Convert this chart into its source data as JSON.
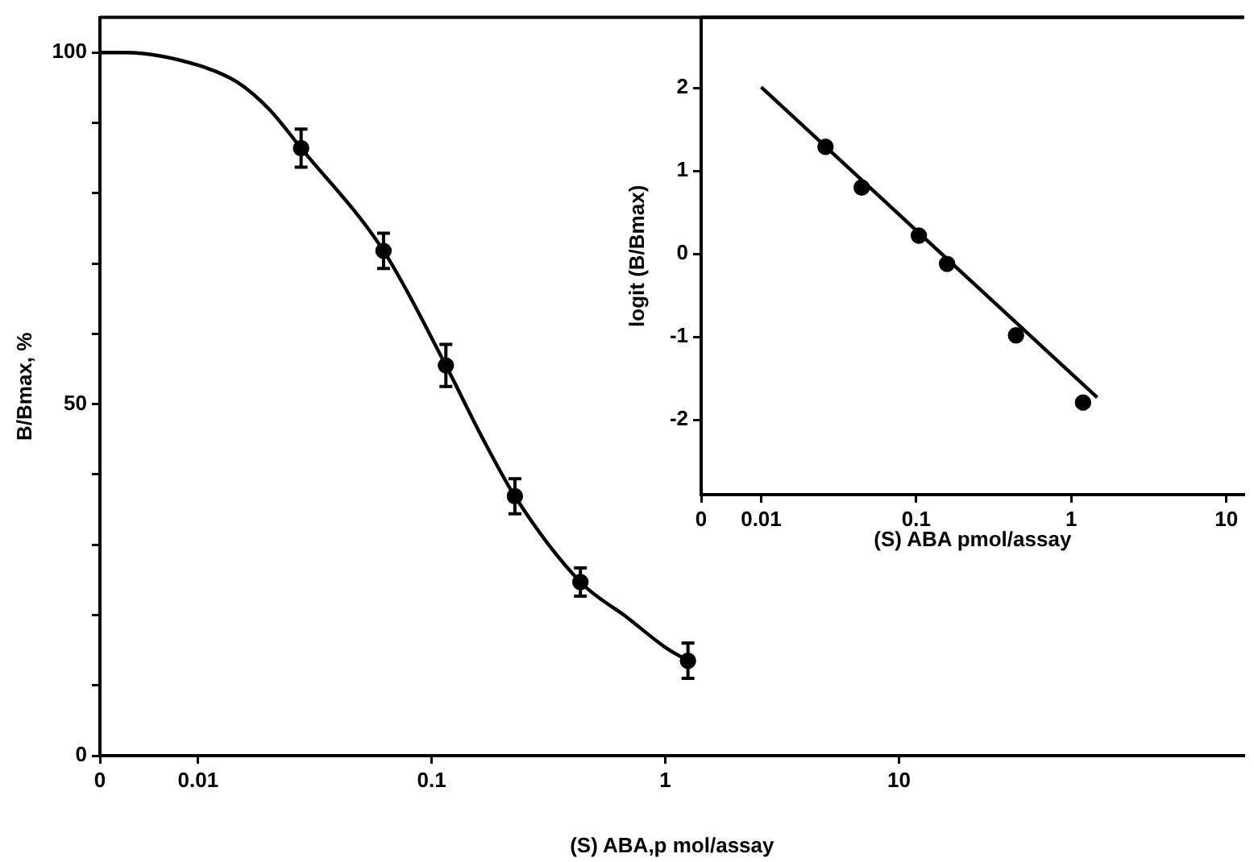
{
  "chart_data": [
    {
      "type": "scatter",
      "xlabel": "(S) ABA,p mol/assay",
      "ylabel": "B/Bmax, %",
      "log": "x",
      "xlim": [
        0.0038,
        300
      ],
      "xticks": [
        {
          "value": 0.0038,
          "label": "0"
        },
        0.01,
        0.1,
        1,
        10
      ],
      "ylim": [
        0,
        105
      ],
      "yticks": [
        0,
        {
          "value": 10,
          "label": null
        },
        {
          "value": 20,
          "label": null
        },
        {
          "value": 30,
          "label": null
        },
        {
          "value": 40,
          "label": null
        },
        50,
        {
          "value": 60,
          "label": null
        },
        {
          "value": 70,
          "label": null
        },
        {
          "value": 80,
          "label": null
        },
        {
          "value": 90,
          "label": null
        },
        100
      ],
      "series": [
        {
          "type": "line",
          "color": "#000000",
          "marker": "none",
          "line_style": "solid",
          "x": [
            0.0038,
            0.0049,
            0.01,
            0.0147,
            0.0202,
            0.0276,
            0.0622,
            0.115,
            0.163,
            0.227,
            0.433,
            0.69,
            1.0,
            1.25
          ],
          "values": [
            100,
            100,
            98.2,
            95.8,
            91.9,
            86.4,
            71.8,
            55.5,
            45.5,
            36.9,
            24.7,
            19.6,
            15.4,
            13.5
          ]
        },
        {
          "color": "#000000",
          "marker": "circle",
          "x": [
            0.0276,
            0.0622,
            0.115,
            0.227,
            0.433,
            1.25
          ],
          "values": [
            86.4,
            71.8,
            55.5,
            36.9,
            24.7,
            13.5
          ],
          "errors": [
            2.7,
            2.5,
            3,
            2.5,
            2,
            2.5
          ]
        }
      ]
    },
    {
      "type": "scatter",
      "xlabel": "(S) ABA pmol/assay",
      "ylabel": "logit (B/Bmax)",
      "log": "x",
      "xlim": [
        0.0041,
        13
      ],
      "xticks": [
        {
          "value": 0.0041,
          "label": "0"
        },
        0.01,
        0.1,
        1,
        10
      ],
      "ylim": [
        -2.9,
        2.85
      ],
      "yticks": [
        -2,
        -1,
        0,
        1,
        2
      ],
      "series": [
        {
          "type": "line",
          "color": "#000000",
          "marker": "none",
          "line_style": "solid",
          "x": [
            0.01,
            1.47
          ],
          "values": [
            2.01,
            -1.73
          ]
        },
        {
          "color": "#000000",
          "marker": "circle",
          "x": [
            0.026,
            0.0445,
            0.104,
            0.158,
            0.44,
            1.19
          ],
          "values": [
            1.29,
            0.8,
            0.22,
            -0.12,
            -0.98,
            -1.79
          ]
        }
      ]
    }
  ]
}
